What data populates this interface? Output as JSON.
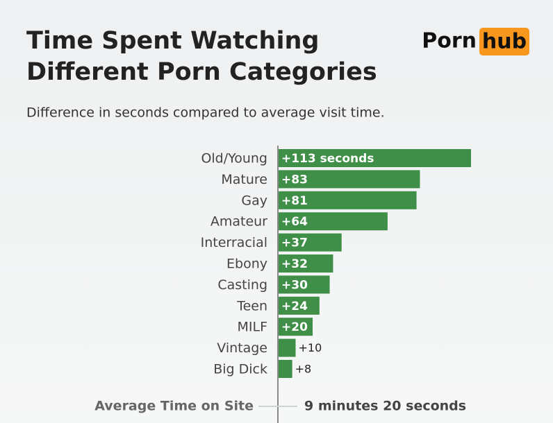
{
  "chart_data": {
    "type": "bar",
    "title": [
      "Time Spent Watching",
      "Different Porn Categories"
    ],
    "logo": {
      "text": "Porn",
      "badge": "hub"
    },
    "subtitle": "Difference in seconds compared to average visit time.",
    "categories": [
      "Old/Young",
      "Mature",
      "Gay",
      "Amateur",
      "Interracial",
      "Ebony",
      "Casting",
      "Teen",
      "MILF",
      "Vintage",
      "Big Dick"
    ],
    "values": [
      113,
      83,
      81,
      64,
      37,
      32,
      30,
      24,
      20,
      10,
      8
    ],
    "value_labels": [
      "+113 seconds",
      "+83",
      "+81",
      "+64",
      "+37",
      "+32",
      "+30",
      "+24",
      "+20",
      "+10",
      "+8"
    ],
    "color": "#3f8f48",
    "footer": {
      "label": "Average Time on Site",
      "value": "9 minutes 20 seconds"
    }
  }
}
